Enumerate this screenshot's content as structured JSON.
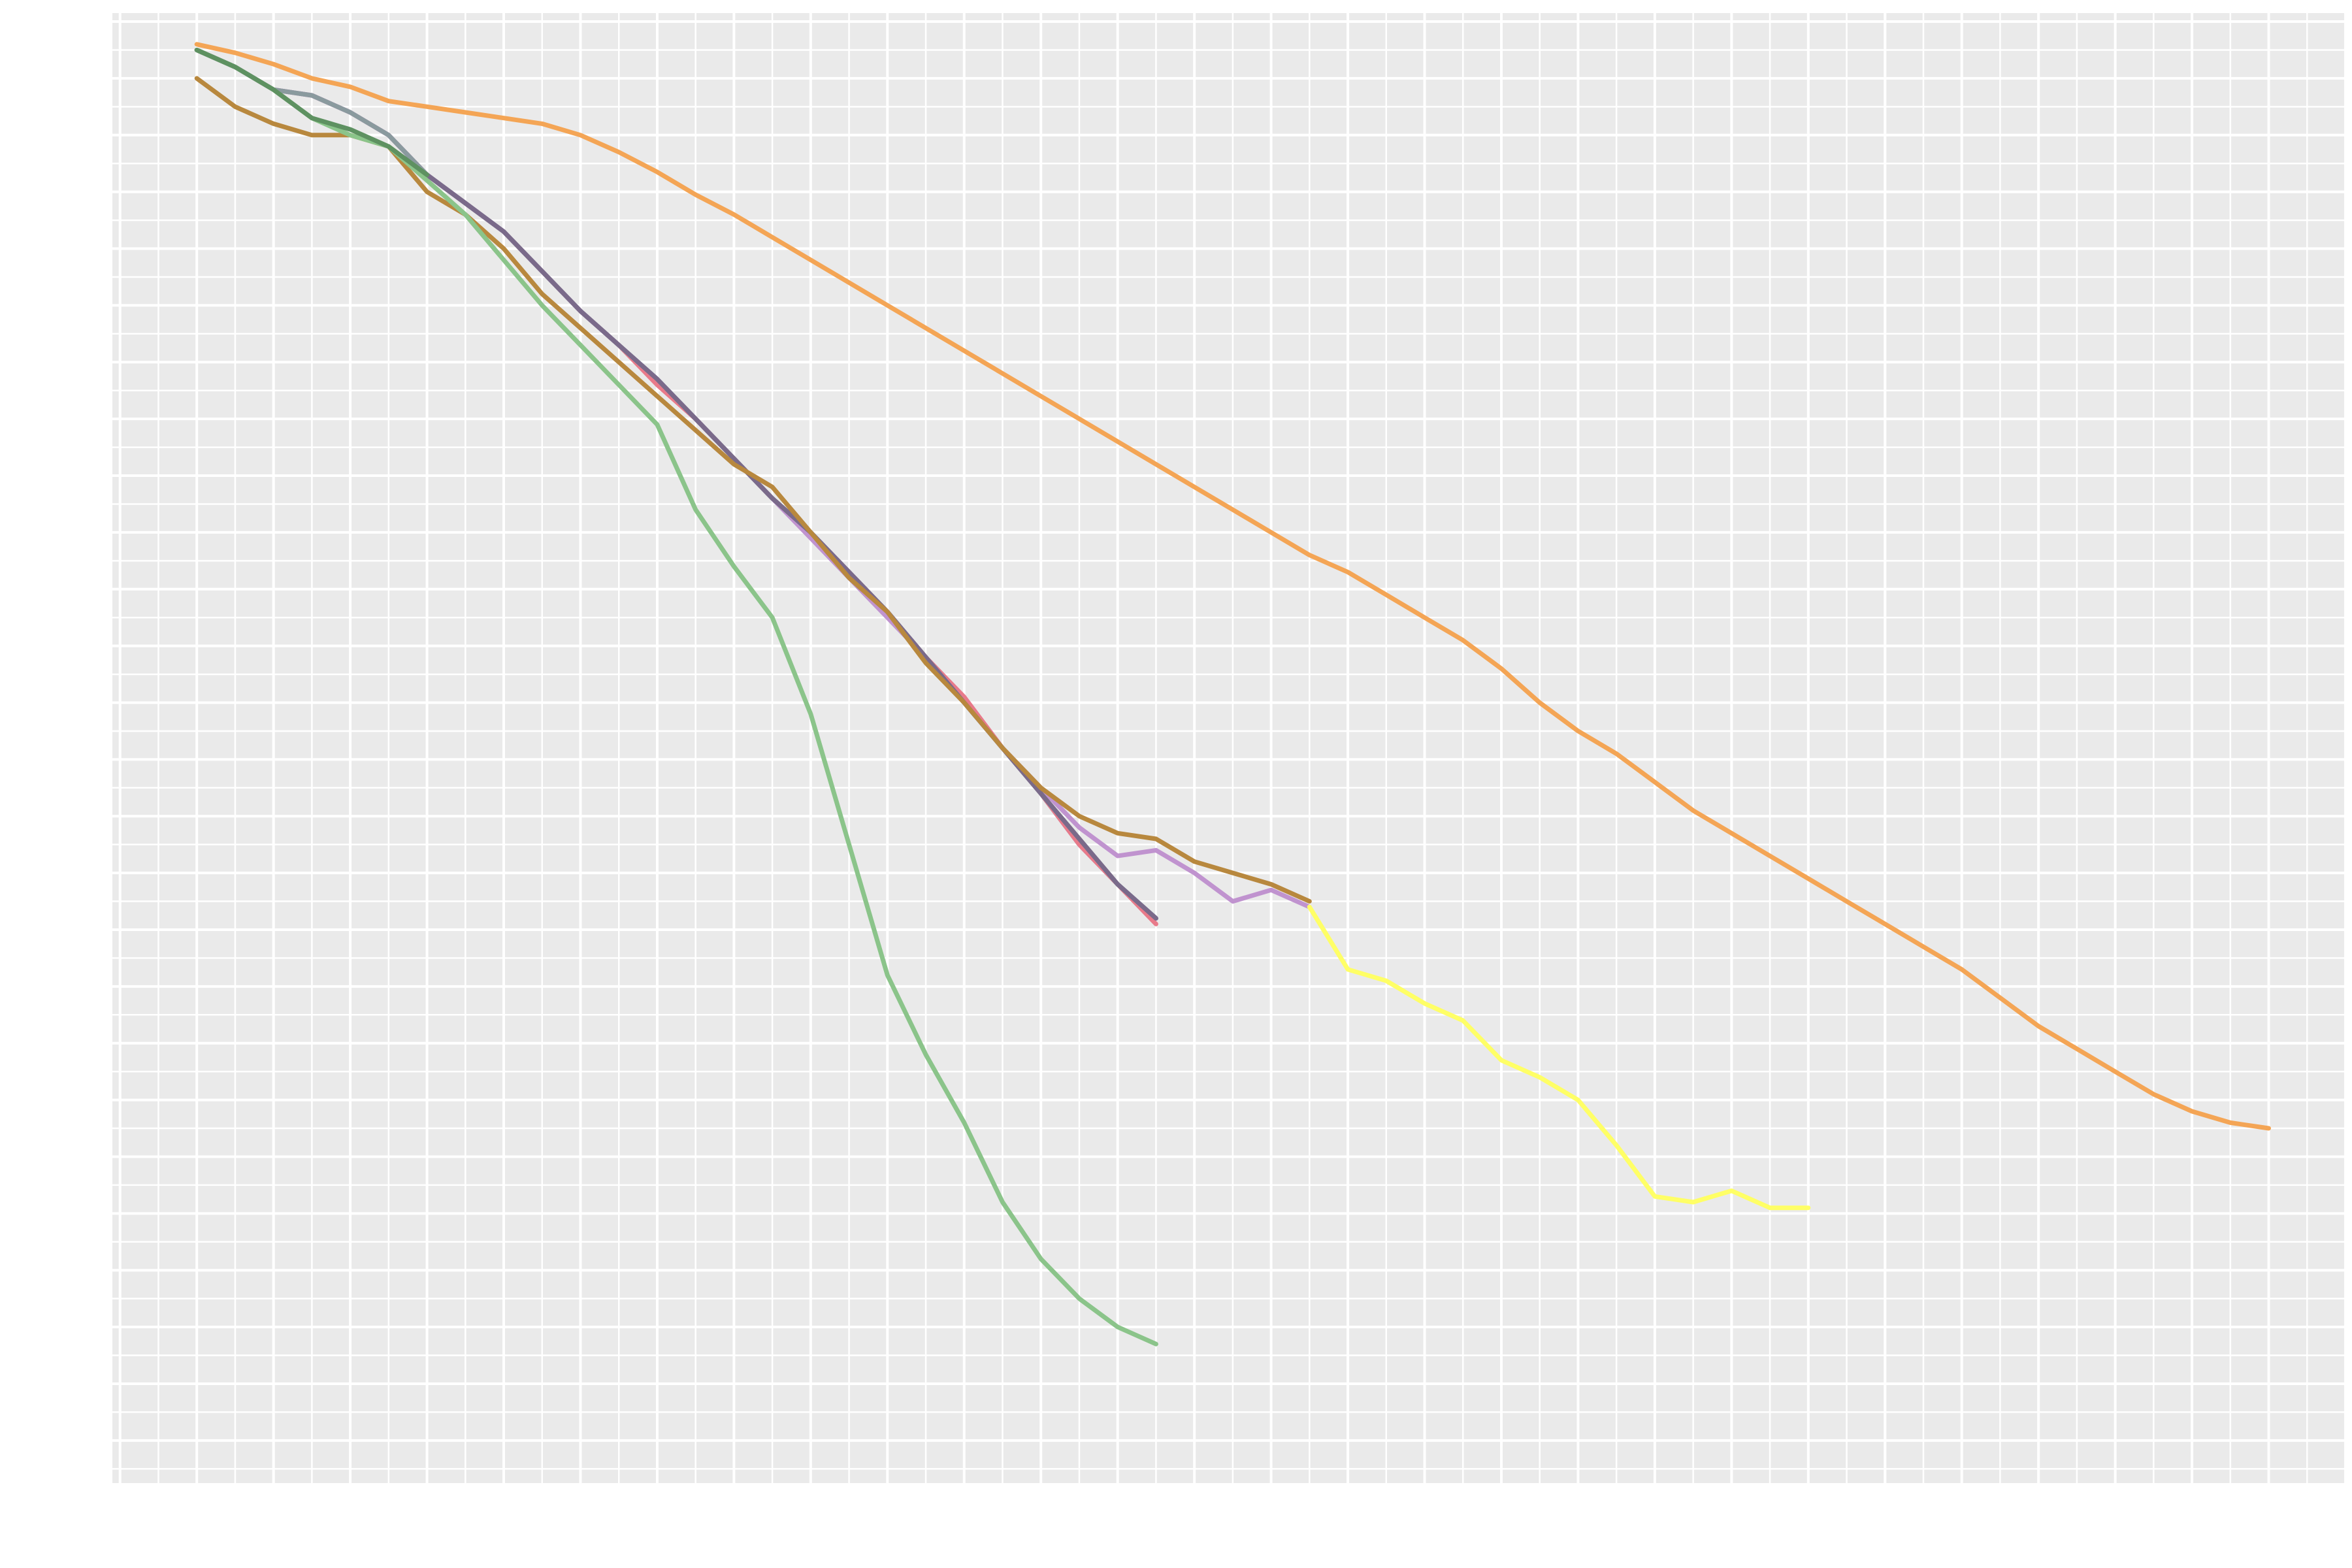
{
  "chart_data": {
    "type": "line",
    "title": "",
    "xlabel": "",
    "ylabel": "",
    "xlim": [
      -1.1,
      28.0
    ],
    "ylim": [
      -0.75,
      25.15
    ],
    "grid": true,
    "legend": "none",
    "series": [
      {
        "color": "#f4a555",
        "x": [
          0,
          0.5,
          1,
          1.5,
          2,
          2.5,
          3,
          3.5,
          4,
          4.5,
          5,
          5.5,
          6,
          6.5,
          7,
          7.5,
          8,
          8.5,
          9,
          9.5,
          10,
          10.5,
          11,
          11.5,
          12,
          12.5,
          13,
          13.5,
          14,
          14.5,
          15,
          15.5,
          16,
          16.5,
          17,
          17.5,
          18,
          18.5,
          19,
          19.5,
          20,
          20.5,
          21,
          21.5,
          22,
          22.5,
          23,
          23.5,
          24,
          24.5,
          25,
          25.5,
          26,
          26.5,
          27
        ],
        "y": [
          24.6,
          24.45,
          24.25,
          24.0,
          23.85,
          23.6,
          23.5,
          23.4,
          23.3,
          23.2,
          23.0,
          22.7,
          22.35,
          21.95,
          21.6,
          21.2,
          20.8,
          20.4,
          20.0,
          19.6,
          19.2,
          18.8,
          18.4,
          18.0,
          17.6,
          17.2,
          16.8,
          16.4,
          16.0,
          15.6,
          15.3,
          14.9,
          14.5,
          14.1,
          13.6,
          13.0,
          12.5,
          12.1,
          11.6,
          11.1,
          10.7,
          10.3,
          9.9,
          9.5,
          9.1,
          8.7,
          8.3,
          7.8,
          7.3,
          6.9,
          6.5,
          6.1,
          5.8,
          5.6,
          5.5
        ]
      },
      {
        "color": "#6aa8d8",
        "x": [
          0,
          0.5,
          1,
          1.5,
          2,
          2.5,
          3,
          3.5,
          4,
          4.5,
          5,
          5.5,
          6,
          6.5,
          7,
          7.5,
          8,
          8.5,
          9,
          9.5,
          10,
          10.5,
          11,
          11.5,
          12,
          12.5
        ],
        "y": [
          24.5,
          24.2,
          23.8,
          23.7,
          23.4,
          23.0,
          22.3,
          21.8,
          21.3,
          20.6,
          19.9,
          19.3,
          18.7,
          18.0,
          17.3,
          16.6,
          16.0,
          15.3,
          14.6,
          13.8,
          13.0,
          12.2,
          11.4,
          10.5,
          9.8,
          9.2
        ]
      },
      {
        "color": "#e87a8a",
        "x": [
          0,
          0.5,
          1,
          1.5,
          2,
          2.5,
          3,
          3.5,
          4,
          4.5,
          5,
          5.5,
          6,
          6.5,
          7,
          7.5,
          8,
          8.5,
          9,
          9.5,
          10,
          10.5,
          11,
          11.5,
          12,
          12.5
        ],
        "y": [
          24.5,
          24.2,
          23.8,
          23.7,
          23.4,
          23.0,
          22.3,
          21.8,
          21.3,
          20.6,
          19.9,
          19.3,
          18.6,
          18.0,
          17.3,
          16.6,
          16.0,
          15.3,
          14.6,
          13.8,
          13.1,
          12.2,
          11.4,
          10.5,
          9.8,
          9.1
        ]
      },
      {
        "color": "#c093cf",
        "x": [
          0,
          0.5,
          1,
          1.5,
          2,
          2.5,
          3,
          3.5,
          4,
          4.5,
          5,
          5.5,
          6,
          6.5,
          7,
          7.5,
          8,
          8.5,
          9,
          9.5,
          10,
          10.5,
          11,
          11.5,
          12,
          12.5,
          13,
          13.5,
          14,
          14.5
        ],
        "y": [
          24.5,
          24.2,
          23.8,
          23.7,
          23.4,
          23.0,
          22.3,
          21.8,
          21.3,
          20.6,
          19.9,
          19.3,
          18.7,
          18.0,
          17.3,
          16.6,
          15.9,
          15.2,
          14.5,
          13.8,
          13.0,
          12.2,
          11.5,
          10.8,
          10.3,
          10.4,
          10.0,
          9.5,
          9.7,
          9.4
        ]
      },
      {
        "color": "#8a9a9e",
        "x": [
          0,
          0.5,
          1,
          1.5,
          2,
          2.5,
          3,
          3.5,
          4,
          4.5,
          5,
          5.5,
          6,
          6.5,
          7,
          7.5,
          8,
          8.5,
          9,
          9.5,
          10,
          10.5,
          11,
          11.5,
          12,
          12.5
        ],
        "y": [
          24.5,
          24.2,
          23.8,
          23.7,
          23.4,
          23.0,
          22.3,
          21.8,
          21.3,
          20.6,
          19.9,
          19.3,
          18.7,
          18.0,
          17.3,
          16.6,
          16.0,
          15.3,
          14.6,
          13.8,
          13.0,
          12.2,
          11.4,
          10.6,
          9.8,
          9.2
        ]
      },
      {
        "color": "#7a6a8a",
        "x": [
          3,
          3.5,
          4,
          4.5,
          5,
          5.5,
          6,
          6.5,
          7,
          7.5,
          8,
          8.5,
          9,
          9.5,
          10,
          10.5,
          11,
          11.5,
          12,
          12.5
        ],
        "y": [
          22.3,
          21.8,
          21.3,
          20.6,
          19.9,
          19.3,
          18.7,
          18.0,
          17.3,
          16.6,
          16.0,
          15.3,
          14.6,
          13.8,
          13.0,
          12.2,
          11.4,
          10.6,
          9.8,
          9.2
        ]
      },
      {
        "color": "#ffff66",
        "x": [
          14.5,
          15,
          15.5,
          16,
          16.5,
          17,
          17.5,
          18,
          18.5,
          19,
          19.5,
          20,
          20.5,
          21
        ],
        "y": [
          9.4,
          8.3,
          8.1,
          7.7,
          7.4,
          6.7,
          6.4,
          6.0,
          5.2,
          4.3,
          4.2,
          4.4,
          4.1,
          4.1
        ]
      },
      {
        "color": "#b8883e",
        "x": [
          0,
          0.5,
          1,
          1.5,
          2,
          2.5,
          3,
          3.5,
          4,
          4.5,
          5,
          5.5,
          6,
          6.5,
          7,
          7.5,
          8,
          8.5,
          9,
          9.5,
          10,
          10.5,
          11,
          11.5,
          12,
          12.5,
          13,
          13.5,
          14,
          14.5
        ],
        "y": [
          24.0,
          23.5,
          23.2,
          23.0,
          23.0,
          22.8,
          22.0,
          21.6,
          21.0,
          20.2,
          19.6,
          19.0,
          18.4,
          17.8,
          17.2,
          16.8,
          16.0,
          15.2,
          14.6,
          13.7,
          13.0,
          12.2,
          11.5,
          11.0,
          10.7,
          10.6,
          10.2,
          10.0,
          9.8,
          9.5
        ]
      },
      {
        "color": "#8bc48a",
        "x": [
          0,
          0.5,
          1,
          1.5,
          2,
          2.5,
          3,
          3.5,
          4,
          4.5,
          5,
          5.5,
          6,
          6.5,
          7,
          7.5,
          8,
          8.5,
          9,
          9.5,
          10,
          10.5,
          11,
          11.5,
          12,
          12.5
        ],
        "y": [
          24.5,
          24.2,
          23.8,
          23.3,
          23.0,
          22.8,
          22.2,
          21.6,
          20.8,
          20.0,
          19.3,
          18.6,
          17.9,
          16.4,
          15.4,
          14.5,
          12.8,
          10.5,
          8.2,
          6.8,
          5.6,
          4.2,
          3.2,
          2.5,
          2.0,
          1.7
        ]
      },
      {
        "color": "#5e9161",
        "x": [
          0,
          0.5,
          1,
          1.5,
          2,
          2.5,
          3
        ],
        "y": [
          24.5,
          24.2,
          23.8,
          23.3,
          23.1,
          22.8,
          22.3
        ]
      }
    ]
  }
}
